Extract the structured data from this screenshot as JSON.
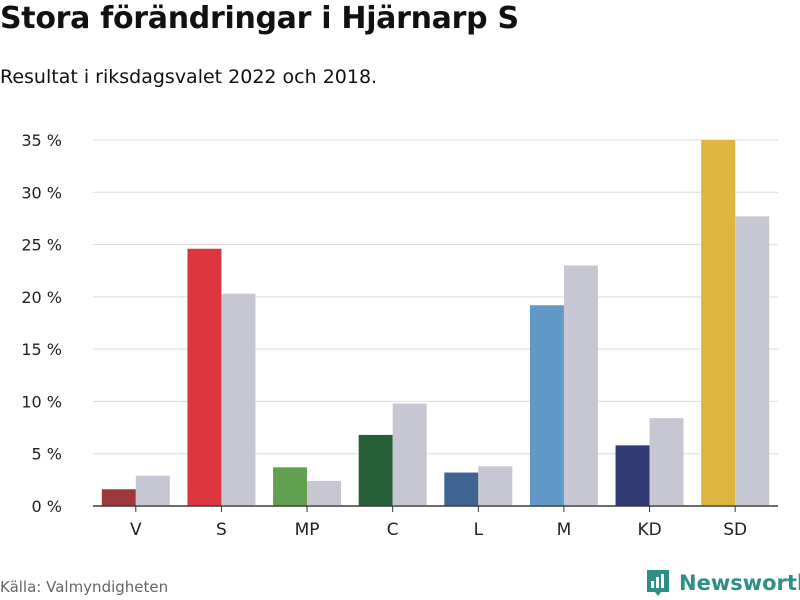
{
  "title": "Stora förändringar i Hjärnarp S",
  "subtitle": "Resultat i riksdagsvalet 2022 och 2018.",
  "source": "Källa: Valmyndigheten",
  "brand": {
    "name": "Newsworthy",
    "color": "#2f8f86",
    "icon": "bar-chart-logo-icon"
  },
  "chart_data": {
    "type": "bar",
    "categories": [
      "V",
      "S",
      "MP",
      "C",
      "L",
      "M",
      "KD",
      "SD"
    ],
    "series": [
      {
        "values": [
          1.6,
          24.6,
          3.7,
          6.8,
          3.2,
          19.2,
          5.8,
          35.0
        ],
        "colors": [
          "#9b3a38",
          "#dc3741",
          "#60a050",
          "#265e36",
          "#3f6492",
          "#6399c8",
          "#2f3b72",
          "#dfb542"
        ]
      },
      {
        "values": [
          2.9,
          20.3,
          2.4,
          9.8,
          3.8,
          23.0,
          8.4,
          27.7
        ],
        "color": "#c7c7d4"
      }
    ],
    "yticks": [
      "0 %",
      "5 %",
      "10 %",
      "15 %",
      "20 %",
      "25 %",
      "30 %",
      "35 %"
    ],
    "ylim": [
      0,
      35
    ],
    "grid": true
  }
}
